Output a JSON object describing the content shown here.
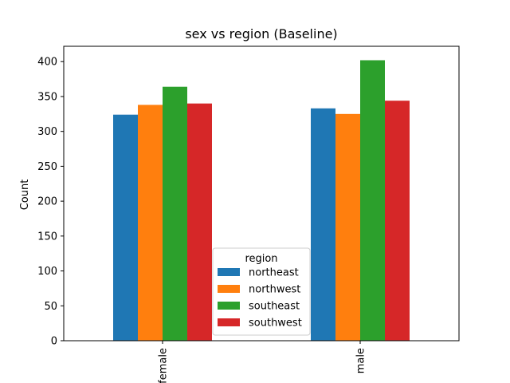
{
  "chart_data": {
    "type": "bar",
    "title": "sex vs region (Baseline)",
    "xlabel": "",
    "ylabel": "Count",
    "categories": [
      "female",
      "male"
    ],
    "series": [
      {
        "name": "northeast",
        "values": [
          324,
          333
        ]
      },
      {
        "name": "northwest",
        "values": [
          338,
          325
        ]
      },
      {
        "name": "southeast",
        "values": [
          364,
          402
        ]
      },
      {
        "name": "southwest",
        "values": [
          340,
          344
        ]
      }
    ],
    "colors": [
      "#1f77b4",
      "#ff7f0e",
      "#2ca02c",
      "#d62728"
    ],
    "ylim": [
      0,
      422
    ],
    "yticks": [
      0,
      50,
      100,
      150,
      200,
      250,
      300,
      350,
      400
    ],
    "grid": false,
    "legend": {
      "title": "region",
      "placement": "lower center"
    }
  }
}
